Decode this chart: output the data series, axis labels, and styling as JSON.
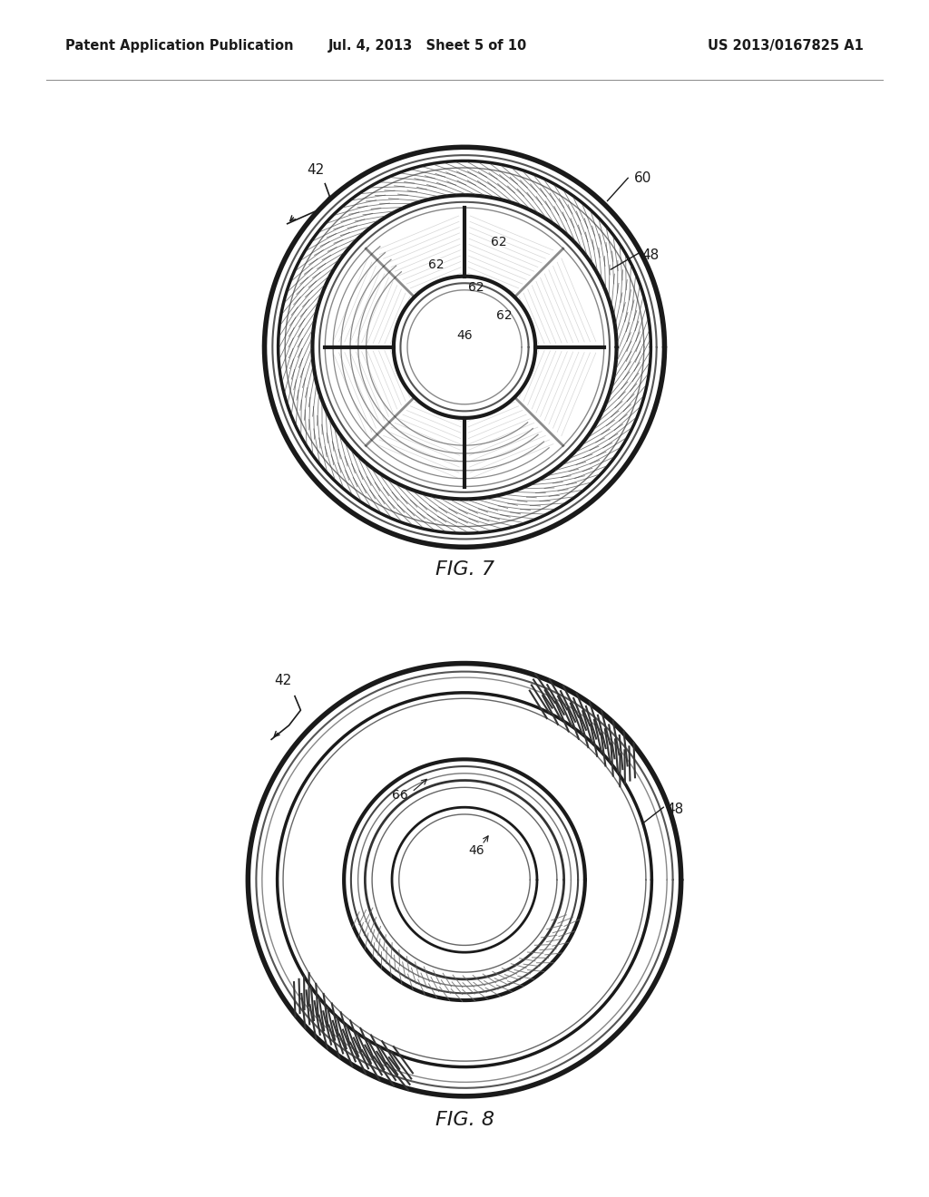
{
  "background_color": "#ffffff",
  "header_left": "Patent Application Publication",
  "header_center": "Jul. 4, 2013   Sheet 5 of 10",
  "header_right": "US 2013/0167825 A1",
  "fig7_label": "FIG. 7",
  "fig8_label": "FIG. 8",
  "text_color": "#1a1a1a",
  "line_color": "#1a1a1a"
}
